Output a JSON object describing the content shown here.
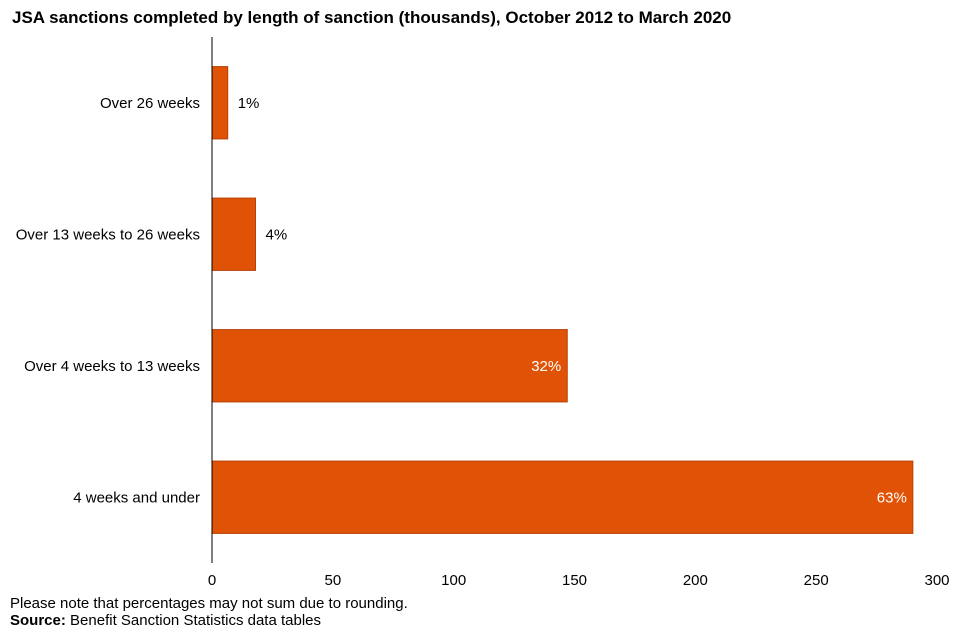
{
  "title": "JSA sanctions completed by length of sanction (thousands), October 2012 to March 2020",
  "note": "Please note that percentages may not sum due to rounding.",
  "source": {
    "label": "Source:",
    "text": "Benefit Sanction Statistics data tables"
  },
  "colors": {
    "bar": "#E05206",
    "bar_edge": "#B84004",
    "label_inside": "#ffffff",
    "label_outside": "#000000",
    "axis": "#000000"
  },
  "chart_data": {
    "type": "bar",
    "orientation": "horizontal",
    "categories": [
      "Over 26 weeks",
      "Over 13 weeks to 26 weeks",
      "Over 4 weeks to 13 weeks",
      "4 weeks and under"
    ],
    "values": [
      6.5,
      18,
      147,
      290
    ],
    "data_labels": [
      "1%",
      "4%",
      "32%",
      "63%"
    ],
    "xlim": [
      0,
      300
    ],
    "xticks": [
      0,
      50,
      100,
      150,
      200,
      250,
      300
    ],
    "xlabel": "",
    "ylabel": "",
    "grid": false,
    "legend": "none"
  }
}
